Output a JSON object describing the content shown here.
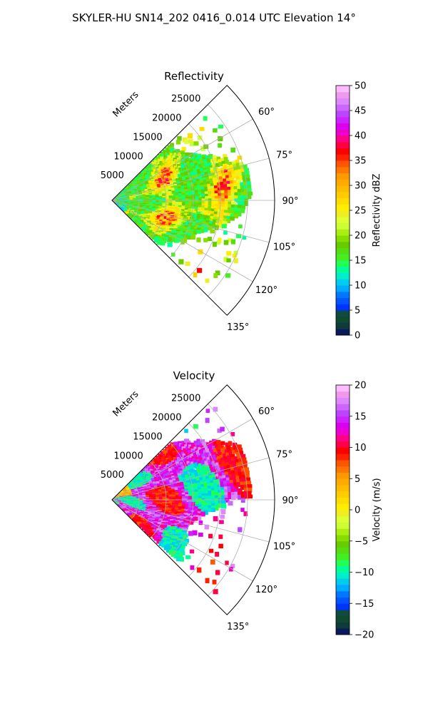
{
  "suptitle": "SKYLER-HU  SN14_202  0416_0.014 UTC Elevation 14°",
  "chart_data": [
    {
      "type": "polar-sector",
      "title": "Reflectivity",
      "range_axis_label": "Meters",
      "range_ticks": [
        5000,
        10000,
        15000,
        20000,
        25000
      ],
      "range_max": 30000,
      "azimuth_range_deg": [
        45,
        135
      ],
      "azimuth_ticks": [
        "60°",
        "75°",
        "90°",
        "105°",
        "120°",
        "135°"
      ],
      "grid": true,
      "colorbar": {
        "label": "Reflectivity dBZ",
        "ticks": [
          "0",
          "5",
          "10",
          "15",
          "20",
          "25",
          "30",
          "35",
          "40",
          "45",
          "50"
        ],
        "min": 0,
        "max": 50,
        "colors": [
          "#0a1a5a",
          "#0d3a3a",
          "#0f4a30",
          "#104a40",
          "#0033ff",
          "#0055ff",
          "#0077ff",
          "#00aaff",
          "#00ccee",
          "#00eecc",
          "#00ff99",
          "#22ff55",
          "#44ee22",
          "#55dd11",
          "#66cc00",
          "#88dd00",
          "#aaee11",
          "#ccff33",
          "#ddff33",
          "#eeee22",
          "#ffee00",
          "#ffdd00",
          "#ffcc00",
          "#ffbb00",
          "#ffaa00",
          "#ff9900",
          "#ff7700",
          "#ff5500",
          "#ff2200",
          "#ff0000",
          "#ff0044",
          "#ff0088",
          "#ee00cc",
          "#dd00ee",
          "#cc22ff",
          "#bb44ff",
          "#cc66ff",
          "#dd88ff",
          "#ee99ee",
          "#ffbbff"
        ]
      }
    },
    {
      "type": "polar-sector",
      "title": "Velocity",
      "range_axis_label": "Meters",
      "range_ticks": [
        5000,
        10000,
        15000,
        20000,
        25000
      ],
      "range_max": 30000,
      "azimuth_range_deg": [
        45,
        135
      ],
      "azimuth_ticks": [
        "60°",
        "75°",
        "90°",
        "105°",
        "120°",
        "135°"
      ],
      "grid": true,
      "colorbar": {
        "label": "Velocity (m/s)",
        "ticks": [
          "−20",
          "−15",
          "−10",
          "−5",
          "0",
          "5",
          "10",
          "15",
          "20"
        ],
        "min": -20,
        "max": 20,
        "colors": [
          "#0a1a5a",
          "#0d3a3a",
          "#0f4a30",
          "#104a40",
          "#0033ff",
          "#0055ff",
          "#0077ff",
          "#00aaff",
          "#00ccee",
          "#00eecc",
          "#00ff99",
          "#22ff55",
          "#44ee22",
          "#55dd11",
          "#66cc00",
          "#88dd00",
          "#aaee11",
          "#ccff33",
          "#ddff33",
          "#eeee22",
          "#ffee00",
          "#ffdd00",
          "#ffcc00",
          "#ffbb00",
          "#ffaa00",
          "#ff9900",
          "#ff7700",
          "#ff5500",
          "#ff2200",
          "#ff0000",
          "#ff0044",
          "#ff0088",
          "#ee00cc",
          "#dd00ee",
          "#cc22ff",
          "#bb44ff",
          "#cc66ff",
          "#dd88ff",
          "#ee99ee",
          "#ffbbff"
        ]
      }
    }
  ]
}
